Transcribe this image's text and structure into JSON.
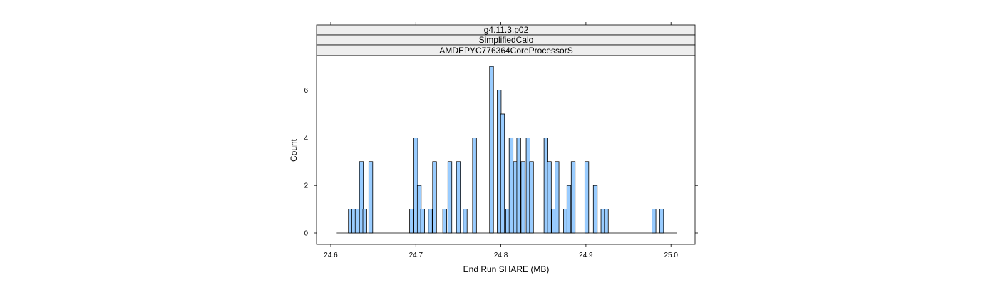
{
  "chart_data": {
    "type": "bar",
    "subtype": "histogram",
    "strips": [
      "g4.11.3.p02",
      "SimplifiedCalo",
      "AMDEPYC776364CoreProcessorS"
    ],
    "xlabel": "End Run SHARE (MB)",
    "ylabel": "Count",
    "xlim": [
      24.6,
      25.0
    ],
    "ylim": [
      0,
      7
    ],
    "x_ticks": [
      "24.6",
      "24.7",
      "24.8",
      "24.9",
      "25.0"
    ],
    "y_ticks": [
      "0",
      "2",
      "4",
      "6"
    ],
    "grid": false,
    "bin_width": 0.00456,
    "baseline_range": [
      24.607,
      25.007
    ],
    "bars": [
      {
        "x": 24.623,
        "y": 1
      },
      {
        "x": 24.627,
        "y": 1
      },
      {
        "x": 24.631,
        "y": 1
      },
      {
        "x": 24.636,
        "y": 3
      },
      {
        "x": 24.64,
        "y": 1
      },
      {
        "x": 24.647,
        "y": 3
      },
      {
        "x": 24.695,
        "y": 1
      },
      {
        "x": 24.7,
        "y": 4
      },
      {
        "x": 24.704,
        "y": 2
      },
      {
        "x": 24.708,
        "y": 1
      },
      {
        "x": 24.717,
        "y": 1
      },
      {
        "x": 24.722,
        "y": 3
      },
      {
        "x": 24.734,
        "y": 1
      },
      {
        "x": 24.74,
        "y": 3
      },
      {
        "x": 24.75,
        "y": 3
      },
      {
        "x": 24.758,
        "y": 1
      },
      {
        "x": 24.769,
        "y": 4
      },
      {
        "x": 24.789,
        "y": 7
      },
      {
        "x": 24.798,
        "y": 6
      },
      {
        "x": 24.802,
        "y": 5
      },
      {
        "x": 24.808,
        "y": 1
      },
      {
        "x": 24.812,
        "y": 4
      },
      {
        "x": 24.817,
        "y": 3
      },
      {
        "x": 24.821,
        "y": 4
      },
      {
        "x": 24.826,
        "y": 3
      },
      {
        "x": 24.832,
        "y": 4
      },
      {
        "x": 24.836,
        "y": 3
      },
      {
        "x": 24.853,
        "y": 4
      },
      {
        "x": 24.857,
        "y": 3
      },
      {
        "x": 24.862,
        "y": 1
      },
      {
        "x": 24.866,
        "y": 3
      },
      {
        "x": 24.876,
        "y": 1
      },
      {
        "x": 24.88,
        "y": 2
      },
      {
        "x": 24.885,
        "y": 3
      },
      {
        "x": 24.901,
        "y": 3
      },
      {
        "x": 24.911,
        "y": 2
      },
      {
        "x": 24.92,
        "y": 1
      },
      {
        "x": 24.924,
        "y": 1
      },
      {
        "x": 24.98,
        "y": 1
      },
      {
        "x": 24.989,
        "y": 1
      }
    ]
  }
}
